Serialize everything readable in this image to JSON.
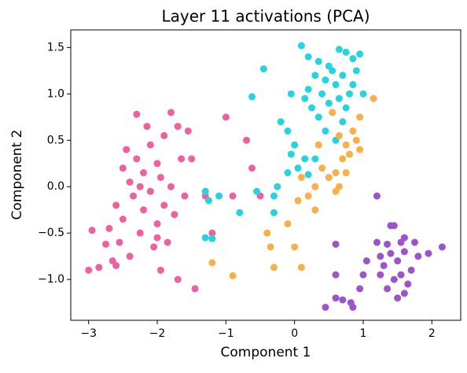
{
  "chart_data": {
    "type": "scatter",
    "title": "Layer 11 activations (PCA)",
    "xlabel": "Component 1",
    "ylabel": "Component 2",
    "xlim": [
      -3.26,
      2.42
    ],
    "ylim": [
      -1.44,
      1.69
    ],
    "xticks": [
      {
        "value": -3,
        "label": "−3"
      },
      {
        "value": -2,
        "label": "−2"
      },
      {
        "value": -1,
        "label": "−1"
      },
      0,
      1,
      2
    ],
    "yticks": [
      {
        "value": -1.0,
        "label": "−1.0"
      },
      {
        "value": -0.5,
        "label": "−0.5"
      },
      {
        "value": 0.0,
        "label": "0.0"
      },
      {
        "value": 0.5,
        "label": "0.5"
      },
      {
        "value": 1.0,
        "label": "1.0"
      },
      {
        "value": 1.5,
        "label": "1.5"
      }
    ],
    "series": [
      {
        "color": "#f0609e",
        "x": [
          -3.0,
          -2.95,
          -2.85,
          -2.75,
          -2.7,
          -2.65,
          -2.6,
          -2.55,
          -2.5,
          -2.5,
          -2.45,
          -2.4,
          -2.4,
          -2.35,
          -2.3,
          -2.3,
          -2.25,
          -2.2,
          -2.2,
          -2.15,
          -2.1,
          -2.1,
          -2.05,
          -2.0,
          -2.0,
          -1.95,
          -1.95,
          -1.9,
          -1.9,
          -1.85,
          -1.8,
          -1.8,
          -1.75,
          -1.7,
          -1.7,
          -1.65,
          -1.6,
          -1.55,
          -1.5,
          -1.45,
          -1.3,
          -1.0,
          -0.9,
          -0.7,
          -0.62,
          -0.5,
          -1.2,
          -2.6,
          -2.0,
          -2.25
        ],
        "y": [
          -0.9,
          -0.47,
          -0.87,
          -0.62,
          -0.45,
          -0.8,
          -0.2,
          -0.6,
          0.2,
          -0.35,
          0.4,
          0.05,
          -0.75,
          -0.1,
          0.78,
          0.3,
          -0.5,
          0.15,
          -0.25,
          0.65,
          0.45,
          -0.05,
          -0.65,
          0.25,
          -0.4,
          0.1,
          -0.9,
          0.55,
          -0.2,
          -0.6,
          0.8,
          0.0,
          -0.3,
          0.65,
          -1.0,
          0.3,
          -0.1,
          0.6,
          0.3,
          -1.1,
          -0.1,
          0.75,
          -0.1,
          0.5,
          0.2,
          -0.1,
          -0.5,
          -0.85,
          -0.55,
          0.0
        ]
      },
      {
        "color": "#27d3df",
        "x": [
          0.1,
          0.2,
          0.35,
          0.5,
          0.65,
          0.75,
          0.85,
          0.95,
          0.3,
          0.45,
          0.55,
          0.6,
          0.7,
          0.8,
          0.9,
          0.4,
          0.5,
          0.65,
          0.75,
          0.85,
          0.2,
          0.25,
          0.35,
          0.55,
          0.7,
          0.15,
          -0.05,
          -0.2,
          -0.45,
          -0.62,
          -0.1,
          0.0,
          -0.05,
          0.05,
          0.15,
          0.2,
          -0.1,
          -0.25,
          -0.55,
          -0.3,
          -0.3,
          -0.8,
          -1.1,
          -1.3,
          -1.3,
          -1.2,
          -1.25,
          0.45,
          0.6,
          0.3,
          1.0
        ],
        "y": [
          1.52,
          1.4,
          1.35,
          1.3,
          1.48,
          1.45,
          1.38,
          1.43,
          1.2,
          1.15,
          1.25,
          1.1,
          1.2,
          1.0,
          1.25,
          1.0,
          0.9,
          0.95,
          0.85,
          1.1,
          1.05,
          0.85,
          0.75,
          0.8,
          0.7,
          0.95,
          1.0,
          0.7,
          1.27,
          0.97,
          0.6,
          0.45,
          0.35,
          0.2,
          0.3,
          0.13,
          0.15,
          0.0,
          -0.05,
          -0.1,
          -0.28,
          -0.28,
          -0.1,
          -0.05,
          -0.55,
          -0.56,
          -0.15,
          0.6,
          0.5,
          0.3,
          1.0
        ]
      },
      {
        "color": "#f8b04a",
        "x": [
          1.15,
          0.95,
          0.85,
          0.9,
          0.75,
          0.65,
          0.7,
          0.6,
          0.8,
          0.95,
          0.5,
          0.4,
          0.65,
          0.6,
          0.3,
          0.2,
          0.1,
          0.05,
          0.3,
          -0.1,
          0.0,
          -0.35,
          -0.3,
          0.1,
          -0.9,
          -1.2,
          0.55,
          0.35,
          0.75,
          -0.4
        ],
        "y": [
          0.95,
          0.75,
          0.6,
          0.5,
          0.45,
          0.55,
          0.3,
          0.15,
          0.35,
          0.4,
          0.1,
          0.2,
          0.0,
          -0.05,
          0.0,
          -0.1,
          0.1,
          -0.15,
          -0.25,
          -0.4,
          -0.65,
          -0.65,
          -0.87,
          -0.87,
          -0.96,
          -0.82,
          0.8,
          0.45,
          0.15,
          -0.5
        ]
      },
      {
        "color": "#9b55c9",
        "x": [
          1.2,
          1.4,
          1.45,
          1.2,
          1.35,
          1.55,
          1.75,
          1.95,
          2.15,
          1.25,
          1.4,
          1.6,
          1.8,
          1.3,
          1.5,
          1.7,
          1.25,
          1.45,
          1.55,
          1.65,
          1.35,
          1.5,
          1.6,
          0.6,
          0.6,
          0.6,
          0.45,
          0.7,
          0.82,
          0.85,
          1.0,
          1.05,
          0.95,
          1.6
        ],
        "y": [
          -0.1,
          -0.42,
          -0.42,
          -0.6,
          -0.62,
          -0.6,
          -0.6,
          -0.72,
          -0.65,
          -0.75,
          -0.72,
          -0.7,
          -0.75,
          -0.85,
          -0.8,
          -0.9,
          -0.95,
          -1.0,
          -0.95,
          -1.05,
          -1.1,
          -1.2,
          -1.15,
          -0.62,
          -0.95,
          -1.2,
          -1.3,
          -1.22,
          -1.25,
          -1.3,
          -0.95,
          -0.8,
          -1.1,
          -0.55
        ]
      }
    ]
  }
}
